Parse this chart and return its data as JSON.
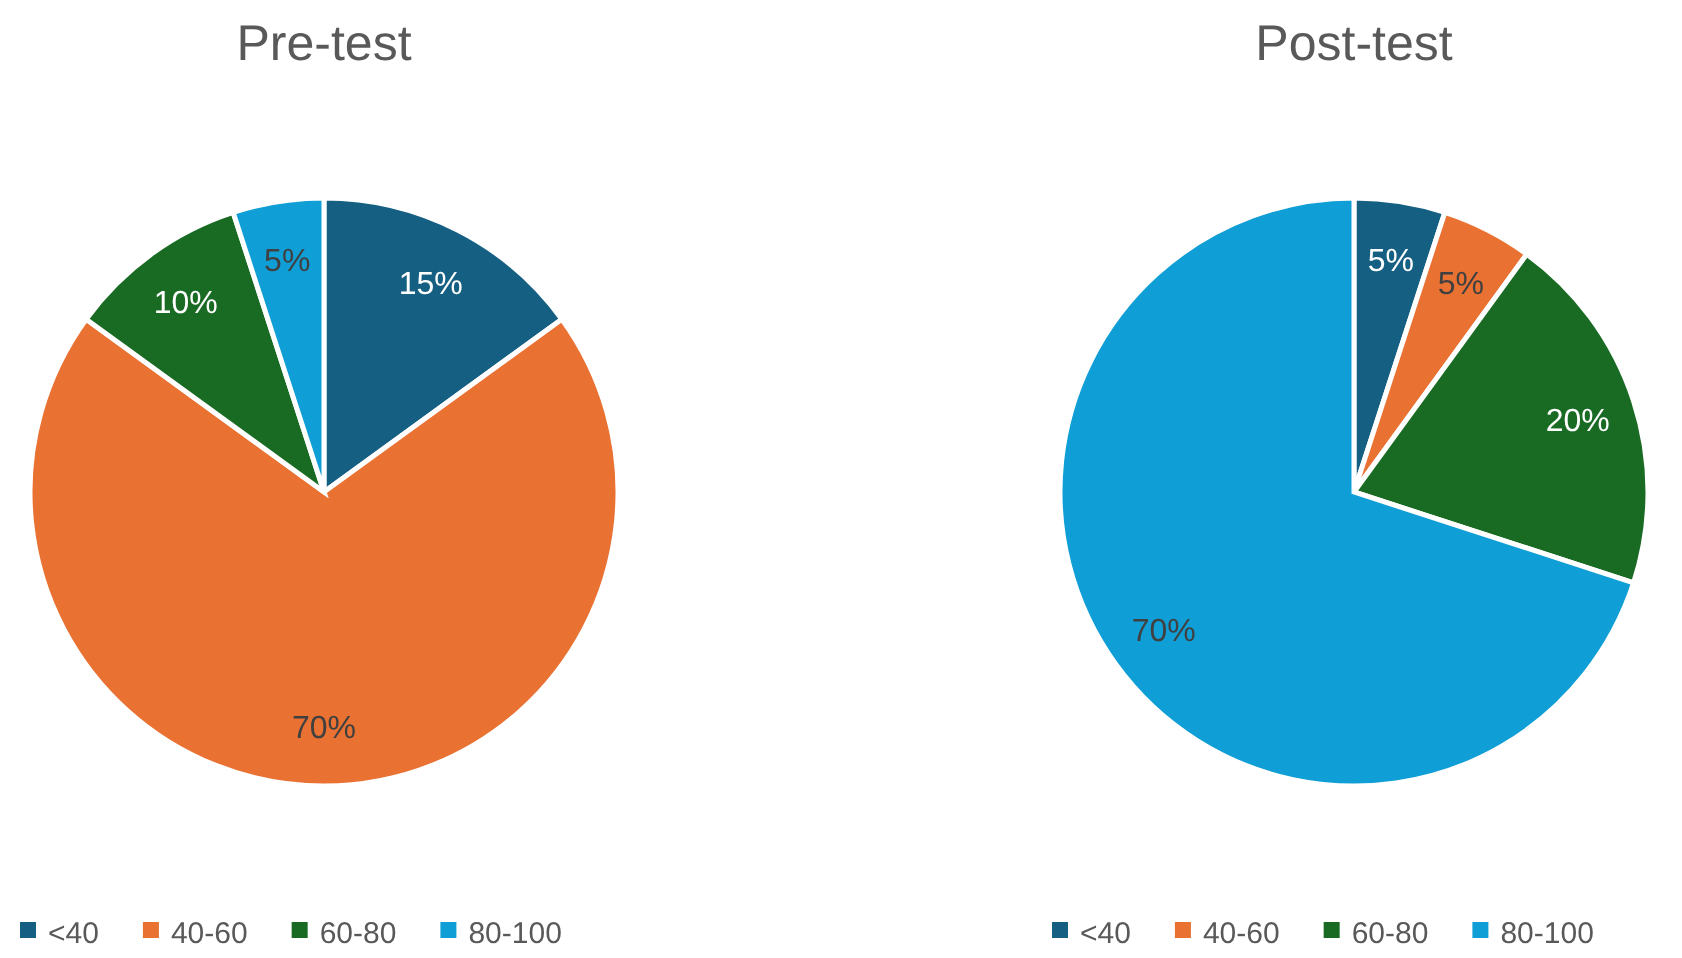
{
  "chart_data": [
    {
      "type": "pie",
      "title": "Pre-test",
      "categories": [
        "<40",
        "40-60",
        "60-80",
        "80-100"
      ],
      "values": [
        15,
        70,
        10,
        5
      ],
      "colors": [
        "#156082",
        "#e97132",
        "#196b24",
        "#0f9ed5"
      ],
      "value_labels": [
        "15%",
        "70%",
        "10%",
        "5%"
      ],
      "legend": "bottom"
    },
    {
      "type": "pie",
      "title": "Post-test",
      "categories": [
        "<40",
        "40-60",
        "60-80",
        "80-100"
      ],
      "values": [
        5,
        5,
        20,
        70
      ],
      "colors": [
        "#156082",
        "#e97132",
        "#196b24",
        "#0f9ed5"
      ],
      "value_labels": [
        "5%",
        "5%",
        "20%",
        "70%"
      ],
      "legend": "bottom"
    }
  ]
}
